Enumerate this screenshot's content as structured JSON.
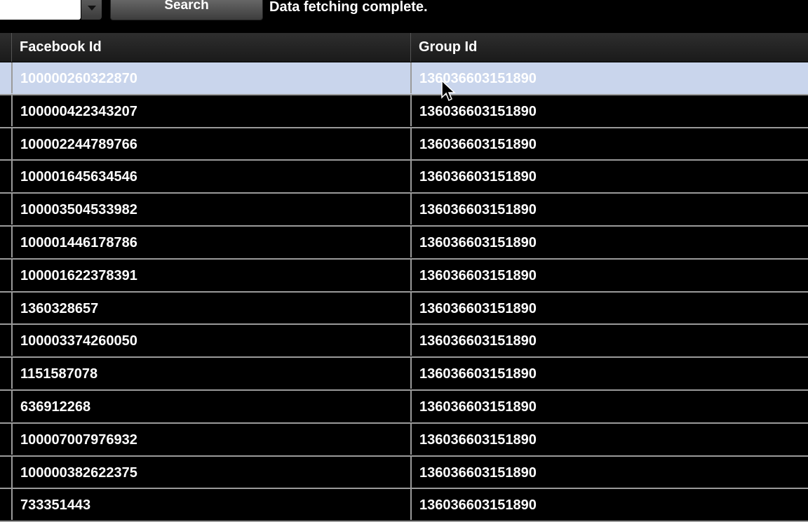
{
  "toolbar": {
    "search_button": "Search",
    "status": "Data fetching complete."
  },
  "table": {
    "columns": [
      "Facebook Id",
      "Group Id"
    ],
    "selected_row": 0,
    "rows": [
      [
        "100000260322870",
        "136036603151890"
      ],
      [
        "100000422343207",
        "136036603151890"
      ],
      [
        "100002244789766",
        "136036603151890"
      ],
      [
        "100001645634546",
        "136036603151890"
      ],
      [
        "100003504533982",
        "136036603151890"
      ],
      [
        "100001446178786",
        "136036603151890"
      ],
      [
        "100001622378391",
        "136036603151890"
      ],
      [
        "1360328657",
        "136036603151890"
      ],
      [
        "100003374260050",
        "136036603151890"
      ],
      [
        "1151587078",
        "136036603151890"
      ],
      [
        "636912268",
        "136036603151890"
      ],
      [
        "100007007976932",
        "136036603151890"
      ],
      [
        "100000382622375",
        "136036603151890"
      ],
      [
        "733351443",
        "136036603151890"
      ]
    ]
  }
}
